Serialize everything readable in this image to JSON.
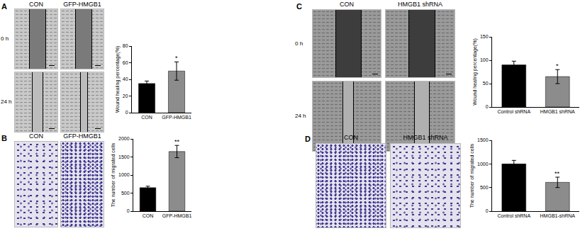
{
  "panels": [
    {
      "label": "A",
      "columns": [
        "CON",
        "GFP-HMGB1"
      ],
      "rows": [
        "0 h",
        "24 h"
      ]
    },
    {
      "label": "B",
      "columns": [
        "CON",
        "GFP-HMGB1"
      ]
    },
    {
      "label": "C",
      "columns": [
        "CON",
        "HMGB1 shRNA"
      ],
      "rows": [
        "0 h",
        "24 h"
      ]
    },
    {
      "label": "D",
      "columns": [
        "CON",
        "HMGB1 shRNA"
      ]
    }
  ],
  "chart_data": [
    {
      "type": "bar",
      "categories": [
        "CON",
        "GFP-HMGB1"
      ],
      "values": [
        35,
        50
      ],
      "errors": [
        3,
        11
      ],
      "colors": [
        "#000000",
        "#8c8c8c"
      ],
      "y_label": "Wound healing percentage(%)",
      "ylim": [
        0,
        80
      ],
      "yticks": [
        0,
        20,
        40,
        60,
        80
      ],
      "grid": false,
      "annotations": [
        {
          "category": "GFP-HMGB1",
          "text": "*"
        }
      ]
    },
    {
      "type": "bar",
      "categories": [
        "CON",
        "GFP-HMGB1"
      ],
      "values": [
        650,
        1650
      ],
      "errors": [
        40,
        170
      ],
      "colors": [
        "#000000",
        "#8c8c8c"
      ],
      "y_label": "The number of migrated cells",
      "ylim": [
        0,
        2000
      ],
      "yticks": [
        0,
        500,
        1000,
        1500,
        2000
      ],
      "grid": false,
      "annotations": [
        {
          "category": "GFP-HMGB1",
          "text": "**"
        }
      ]
    },
    {
      "type": "bar",
      "categories": [
        "Control shRNA",
        "HMGB1 shRNA"
      ],
      "values": [
        90,
        65
      ],
      "errors": [
        8,
        15
      ],
      "colors": [
        "#000000",
        "#8c8c8c"
      ],
      "y_label": "Wound healing percentage(%)",
      "ylim": [
        0,
        150
      ],
      "yticks": [
        0,
        50,
        100,
        150
      ],
      "grid": false,
      "annotations": [
        {
          "category": "HMGB1 shRNA",
          "text": "*"
        }
      ]
    },
    {
      "type": "bar",
      "categories": [
        "Control shRNA",
        "HMGB1-shRNA"
      ],
      "values": [
        1000,
        610
      ],
      "errors": [
        75,
        110
      ],
      "colors": [
        "#000000",
        "#8c8c8c"
      ],
      "y_label": "The number of migrated cells",
      "ylim": [
        0,
        1500
      ],
      "yticks": [
        0,
        500,
        1000,
        1500
      ],
      "grid": false,
      "annotations": [
        {
          "category": "HMGB1-shRNA",
          "text": "**"
        }
      ]
    }
  ]
}
